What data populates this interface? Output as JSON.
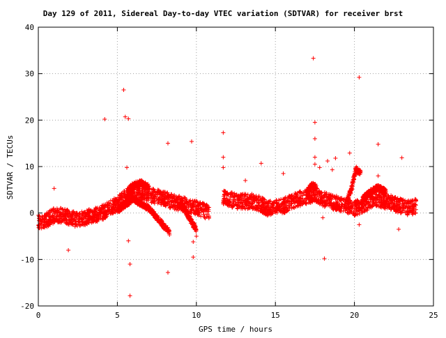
{
  "chart_data": {
    "type": "scatter",
    "title": "Day 129 of 2011, Sidereal Day-to-day VTEC variation (SDTVAR) for receiver brst",
    "xlabel": "GPS time / hours",
    "ylabel": "SDTVAR / TECUs",
    "xlim": [
      0,
      25
    ],
    "ylim": [
      -20,
      40
    ],
    "xticks": [
      0,
      5,
      10,
      15,
      20,
      25
    ],
    "yticks": [
      -20,
      -10,
      0,
      10,
      20,
      30,
      40
    ],
    "grid": true,
    "marker": "+",
    "color": "#ff0000",
    "bands": [
      {
        "x": [
          0.0,
          0.5,
          1.0,
          1.5,
          2.0,
          2.5,
          3.0,
          3.5,
          4.0,
          4.5,
          5.0,
          5.5,
          6.0,
          6.5,
          7.0,
          7.5,
          8.0,
          8.5,
          9.0,
          9.5,
          10.0,
          10.5,
          10.8
        ],
        "y": [
          -2.0,
          -1.5,
          -0.5,
          -0.5,
          -1.0,
          -1.5,
          -1.0,
          -0.5,
          0.0,
          1.0,
          2.0,
          3.5,
          5.0,
          4.5,
          4.0,
          3.5,
          3.0,
          2.5,
          2.0,
          1.5,
          1.0,
          0.5,
          0.0
        ]
      },
      {
        "x": [
          11.7,
          12.5,
          13.0,
          13.5,
          14.0,
          14.5,
          15.0,
          15.5,
          16.0,
          16.5,
          17.0,
          17.5,
          18.0,
          18.5,
          19.0,
          19.5,
          20.0,
          20.5,
          21.0,
          21.5,
          22.0,
          22.5,
          23.0,
          23.5,
          23.9
        ],
        "y": [
          3.5,
          2.5,
          2.5,
          2.5,
          2.0,
          1.0,
          1.5,
          1.5,
          2.5,
          3.0,
          3.5,
          4.0,
          3.0,
          2.5,
          2.0,
          1.5,
          1.0,
          1.5,
          2.5,
          3.0,
          2.5,
          2.0,
          1.5,
          1.0,
          1.5
        ]
      }
    ],
    "arcs": [
      {
        "x": [
          5.0,
          6.0,
          6.5,
          7.0,
          7.5,
          8.0,
          8.3
        ],
        "y": [
          0.5,
          3.0,
          2.0,
          1.0,
          -1.0,
          -3.0,
          -4.0
        ]
      },
      {
        "x": [
          5.5,
          6.0,
          6.5,
          7.0
        ],
        "y": [
          2.0,
          6.0,
          6.5,
          5.5
        ]
      },
      {
        "x": [
          9.0,
          9.4,
          9.7,
          10.0
        ],
        "y": [
          2.0,
          0.0,
          -2.0,
          -3.5
        ]
      },
      {
        "x": [
          19.5,
          19.8,
          20.1,
          20.4
        ],
        "y": [
          2.5,
          5.0,
          9.5,
          8.5
        ]
      },
      {
        "x": [
          20.5,
          21.0,
          21.5,
          22.0
        ],
        "y": [
          3.0,
          4.5,
          5.5,
          4.5
        ]
      },
      {
        "x": [
          17.0,
          17.3,
          17.6
        ],
        "y": [
          4.5,
          6.0,
          5.5
        ]
      }
    ],
    "outliers": [
      {
        "x": 1.0,
        "y": 5.3
      },
      {
        "x": 1.9,
        "y": -8.0
      },
      {
        "x": 4.2,
        "y": 20.2
      },
      {
        "x": 5.4,
        "y": 26.5
      },
      {
        "x": 5.5,
        "y": 20.7
      },
      {
        "x": 5.7,
        "y": 20.3
      },
      {
        "x": 5.6,
        "y": 9.8
      },
      {
        "x": 5.7,
        "y": -6.0
      },
      {
        "x": 5.8,
        "y": -11.0
      },
      {
        "x": 5.8,
        "y": -17.8
      },
      {
        "x": 8.2,
        "y": 15.0
      },
      {
        "x": 8.2,
        "y": -12.8
      },
      {
        "x": 8.3,
        "y": -4.7
      },
      {
        "x": 9.7,
        "y": 15.4
      },
      {
        "x": 9.8,
        "y": -6.2
      },
      {
        "x": 9.8,
        "y": -9.5
      },
      {
        "x": 10.0,
        "y": -5.0
      },
      {
        "x": 11.7,
        "y": 17.3
      },
      {
        "x": 11.7,
        "y": 12.0
      },
      {
        "x": 11.7,
        "y": 9.8
      },
      {
        "x": 13.1,
        "y": 7.0
      },
      {
        "x": 14.1,
        "y": 10.7
      },
      {
        "x": 15.5,
        "y": 8.5
      },
      {
        "x": 17.4,
        "y": 33.3
      },
      {
        "x": 17.5,
        "y": 19.5
      },
      {
        "x": 17.5,
        "y": 16.0
      },
      {
        "x": 17.5,
        "y": 12.0
      },
      {
        "x": 17.5,
        "y": 10.5
      },
      {
        "x": 17.8,
        "y": 9.8
      },
      {
        "x": 18.0,
        "y": -1.0
      },
      {
        "x": 18.1,
        "y": -9.8
      },
      {
        "x": 18.3,
        "y": 11.2
      },
      {
        "x": 18.6,
        "y": 9.3
      },
      {
        "x": 18.8,
        "y": 11.8
      },
      {
        "x": 19.7,
        "y": 12.9
      },
      {
        "x": 20.3,
        "y": 29.2
      },
      {
        "x": 20.3,
        "y": -2.5
      },
      {
        "x": 21.5,
        "y": 14.8
      },
      {
        "x": 21.5,
        "y": 8.0
      },
      {
        "x": 23.0,
        "y": 11.9
      },
      {
        "x": 22.8,
        "y": -3.5
      },
      {
        "x": 0.3,
        "y": -1.5
      }
    ]
  }
}
